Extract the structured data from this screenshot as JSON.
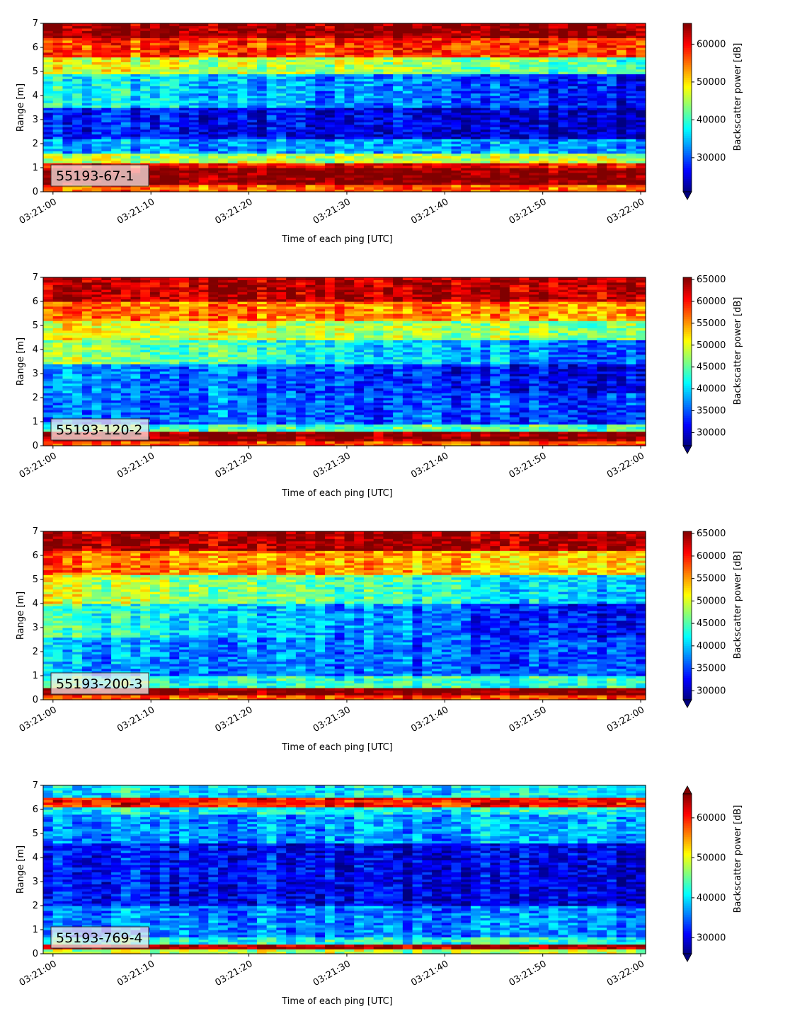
{
  "chart_data": [
    {
      "type": "heatmap",
      "label": "55193-67-1",
      "xlabel": "Time of each ping [UTC]",
      "ylabel": "Range [m]",
      "colorbar_label": "Backscatter power [dB]",
      "colormap": "jet",
      "xticks": [
        "03:21:00",
        "03:21:10",
        "03:21:20",
        "03:21:30",
        "03:21:40",
        "03:21:50",
        "03:22:00"
      ],
      "xlim": [
        "03:20:59",
        "03:22:00.5"
      ],
      "yticks": [
        0,
        1,
        2,
        3,
        4,
        5,
        6,
        7
      ],
      "ylim": [
        0,
        7
      ],
      "cticks": [
        30000,
        40000,
        50000,
        60000
      ],
      "clim": [
        21000,
        65500
      ],
      "extend": "min",
      "profile": [
        {
          "range": [
            0.0,
            0.25
          ],
          "level": 0.78
        },
        {
          "range": [
            0.25,
            1.0
          ],
          "level": 1.0
        },
        {
          "range": [
            1.0,
            1.2
          ],
          "level": 0.88
        },
        {
          "range": [
            1.2,
            1.6
          ],
          "level": 0.55
        },
        {
          "range": [
            1.6,
            2.2
          ],
          "level": 0.28
        },
        {
          "range": [
            2.2,
            3.5
          ],
          "level": 0.15,
          "late": 0.05
        },
        {
          "range": [
            3.5,
            4.9
          ],
          "level": 0.4,
          "late": 0.12
        },
        {
          "range": [
            4.9,
            5.6
          ],
          "level": 0.62,
          "late": 0.45
        },
        {
          "range": [
            5.6,
            6.4
          ],
          "level": 0.82
        },
        {
          "range": [
            6.4,
            7.0
          ],
          "level": 0.98
        }
      ]
    },
    {
      "type": "heatmap",
      "label": "55193-120-2",
      "xlabel": "Time of each ping [UTC]",
      "ylabel": "Range [m]",
      "colorbar_label": "Backscatter power [dB]",
      "colormap": "jet",
      "xticks": [
        "03:21:00",
        "03:21:10",
        "03:21:20",
        "03:21:30",
        "03:21:40",
        "03:21:50",
        "03:22:00"
      ],
      "xlim": [
        "03:20:59",
        "03:22:00.5"
      ],
      "yticks": [
        0,
        1,
        2,
        3,
        4,
        5,
        6,
        7
      ],
      "ylim": [
        0,
        7
      ],
      "cticks": [
        30000,
        35000,
        40000,
        45000,
        50000,
        55000,
        60000,
        65000
      ],
      "clim": [
        27000,
        65500
      ],
      "extend": "min",
      "profile": [
        {
          "range": [
            0.0,
            0.15
          ],
          "level": 0.8
        },
        {
          "range": [
            0.15,
            0.55
          ],
          "level": 1.0
        },
        {
          "range": [
            0.55,
            0.9
          ],
          "level": 0.45
        },
        {
          "range": [
            0.9,
            2.2
          ],
          "level": 0.25,
          "late": 0.18
        },
        {
          "range": [
            2.2,
            3.4
          ],
          "level": 0.28,
          "late": 0.1
        },
        {
          "range": [
            3.4,
            4.4
          ],
          "level": 0.55,
          "late": 0.2
        },
        {
          "range": [
            4.4,
            5.2
          ],
          "level": 0.62,
          "late": 0.5
        },
        {
          "range": [
            5.2,
            6.0
          ],
          "level": 0.78,
          "late": 0.72
        },
        {
          "range": [
            6.0,
            7.0
          ],
          "level": 0.95
        }
      ]
    },
    {
      "type": "heatmap",
      "label": "55193-200-3",
      "xlabel": "Time of each ping [UTC]",
      "ylabel": "Range [m]",
      "colorbar_label": "Backscatter power [dB]",
      "colormap": "jet",
      "xticks": [
        "03:21:00",
        "03:21:10",
        "03:21:20",
        "03:21:30",
        "03:21:40",
        "03:21:50",
        "03:22:00"
      ],
      "xlim": [
        "03:20:59",
        "03:22:00.5"
      ],
      "yticks": [
        0,
        1,
        2,
        3,
        4,
        5,
        6,
        7
      ],
      "ylim": [
        0,
        7
      ],
      "cticks": [
        30000,
        35000,
        40000,
        45000,
        50000,
        55000,
        60000,
        65000
      ],
      "clim": [
        28000,
        65500
      ],
      "extend": "min",
      "profile": [
        {
          "range": [
            0.0,
            0.15
          ],
          "level": 0.8
        },
        {
          "range": [
            0.15,
            0.45
          ],
          "level": 1.0
        },
        {
          "range": [
            0.45,
            1.0
          ],
          "level": 0.42
        },
        {
          "range": [
            1.0,
            2.6
          ],
          "level": 0.3,
          "late": 0.18
        },
        {
          "range": [
            2.6,
            4.0
          ],
          "level": 0.45,
          "late": 0.1
        },
        {
          "range": [
            4.0,
            5.2
          ],
          "level": 0.6,
          "late": 0.3
        },
        {
          "range": [
            5.2,
            6.2
          ],
          "level": 0.78,
          "late": 0.65
        },
        {
          "range": [
            6.2,
            7.0
          ],
          "level": 0.96
        }
      ]
    },
    {
      "type": "heatmap",
      "label": "55193-769-4",
      "xlabel": "Time of each ping [UTC]",
      "ylabel": "Range [m]",
      "colorbar_label": "Backscatter power [dB]",
      "colormap": "jet",
      "xticks": [
        "03:21:00",
        "03:21:10",
        "03:21:20",
        "03:21:30",
        "03:21:40",
        "03:21:50",
        "03:22:00"
      ],
      "xlim": [
        "03:20:59",
        "03:22:00.5"
      ],
      "yticks": [
        0,
        1,
        2,
        3,
        4,
        5,
        6,
        7
      ],
      "ylim": [
        0,
        7
      ],
      "cticks": [
        30000,
        40000,
        50000,
        60000
      ],
      "clim": [
        26000,
        66000
      ],
      "extend": "both",
      "profile": [
        {
          "range": [
            0.0,
            0.2
          ],
          "level": 0.55
        },
        {
          "range": [
            0.2,
            0.35
          ],
          "level": 0.95
        },
        {
          "range": [
            0.35,
            0.7
          ],
          "level": 0.4
        },
        {
          "range": [
            0.7,
            2.0
          ],
          "level": 0.25
        },
        {
          "range": [
            2.0,
            4.6
          ],
          "level": 0.15,
          "late": 0.08
        },
        {
          "range": [
            4.6,
            5.8
          ],
          "level": 0.25,
          "late": 0.3
        },
        {
          "range": [
            5.8,
            6.1
          ],
          "level": 0.38
        },
        {
          "range": [
            6.1,
            6.5
          ],
          "level": 0.85
        },
        {
          "range": [
            6.5,
            7.0
          ],
          "level": 0.35
        }
      ]
    }
  ]
}
